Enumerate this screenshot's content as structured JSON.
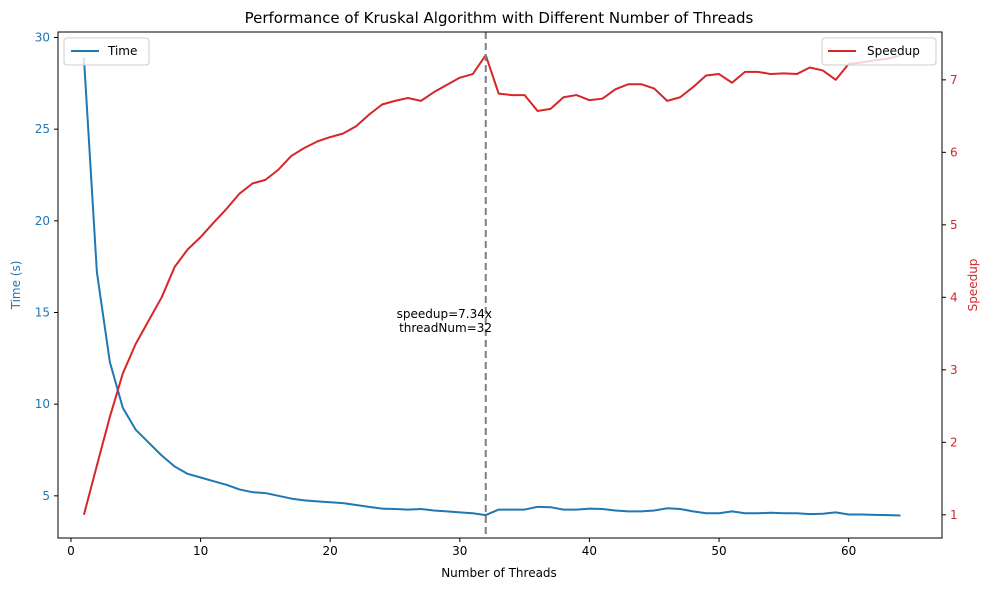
{
  "chart_data": {
    "type": "line",
    "title": "Performance of Kruskal Algorithm with Different Number of Threads",
    "xlabel": "Number of Threads",
    "ylabel_left": "Time (s)",
    "ylabel_right": "Speedup",
    "xlim": [
      -1,
      67.2
    ],
    "ylim_left": [
      2.7,
      30.3
    ],
    "ylim_right": [
      0.68,
      7.66
    ],
    "xticks": [
      0,
      10,
      20,
      30,
      40,
      50,
      60
    ],
    "yticks_left": [
      5,
      10,
      15,
      20,
      25,
      30
    ],
    "yticks_right": [
      1,
      2,
      3,
      4,
      5,
      6,
      7
    ],
    "legend_left": {
      "label": "Time",
      "position": "upper left"
    },
    "legend_right": {
      "label": "Speedup",
      "position": "upper right"
    },
    "colors": {
      "time": "#1f77b4",
      "speedup": "#d62728",
      "vline": "#7f7f7f",
      "axis_text": "#000000"
    },
    "annotation": {
      "x": 32,
      "line1": "speedup=7.34x",
      "line2": "threadNum=32"
    },
    "x": [
      1,
      2,
      3,
      4,
      5,
      6,
      7,
      8,
      9,
      10,
      11,
      12,
      13,
      14,
      15,
      16,
      17,
      18,
      19,
      20,
      21,
      22,
      23,
      24,
      25,
      26,
      27,
      28,
      29,
      30,
      31,
      32,
      33,
      34,
      35,
      36,
      37,
      38,
      39,
      40,
      41,
      42,
      43,
      44,
      45,
      46,
      47,
      48,
      49,
      50,
      51,
      52,
      53,
      54,
      55,
      56,
      57,
      58,
      59,
      60,
      61,
      62,
      63,
      64
    ],
    "series": [
      {
        "name": "Time",
        "axis": "left",
        "values": [
          28.9,
          17.2,
          12.3,
          9.8,
          8.6,
          7.9,
          7.2,
          6.6,
          6.2,
          6.0,
          5.8,
          5.6,
          5.35,
          5.2,
          5.15,
          5.0,
          4.85,
          4.75,
          4.7,
          4.65,
          4.6,
          4.5,
          4.4,
          4.3,
          4.28,
          4.25,
          4.28,
          4.2,
          4.15,
          4.1,
          4.05,
          3.95,
          4.25,
          4.25,
          4.25,
          4.4,
          4.38,
          4.25,
          4.25,
          4.3,
          4.28,
          4.2,
          4.15,
          4.15,
          4.2,
          4.32,
          4.28,
          4.15,
          4.05,
          4.05,
          4.15,
          4.05,
          4.05,
          4.08,
          4.05,
          4.05,
          4.0,
          4.02,
          4.1,
          3.98,
          3.98,
          3.96,
          3.95,
          3.93
        ]
      },
      {
        "name": "Speedup",
        "axis": "right",
        "values": [
          1.0,
          1.68,
          2.35,
          2.95,
          3.36,
          3.68,
          4.0,
          4.42,
          4.66,
          4.83,
          5.03,
          5.22,
          5.43,
          5.57,
          5.62,
          5.76,
          5.95,
          6.06,
          6.15,
          6.21,
          6.26,
          6.36,
          6.52,
          6.66,
          6.71,
          6.75,
          6.71,
          6.83,
          6.93,
          7.03,
          7.08,
          7.34,
          6.81,
          6.79,
          6.79,
          6.57,
          6.6,
          6.76,
          6.79,
          6.72,
          6.74,
          6.87,
          6.94,
          6.94,
          6.88,
          6.71,
          6.76,
          6.9,
          7.06,
          7.08,
          6.96,
          7.11,
          7.11,
          7.08,
          7.09,
          7.08,
          7.17,
          7.13,
          7.0,
          7.22,
          7.24,
          7.27,
          7.29,
          7.34
        ]
      }
    ]
  }
}
